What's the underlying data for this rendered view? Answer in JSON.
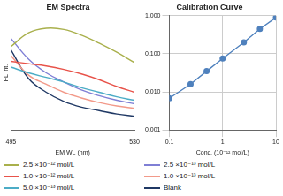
{
  "chart_data": [
    {
      "type": "line",
      "title": "EM Spectra",
      "x_label": "EM WL (nm)",
      "y_label": "FL int.",
      "x": [
        495,
        500,
        505,
        510,
        515,
        520,
        525,
        530
      ],
      "series": [
        {
          "name": "2.5 ×10⁻¹² mol/L",
          "color": "#a9b04c",
          "values": [
            73,
            85,
            89,
            88,
            83,
            76,
            68,
            59
          ]
        },
        {
          "name": "1.0 ×10⁻¹² mol/L",
          "color": "#e8534a",
          "values": [
            60,
            58,
            56,
            53,
            49,
            44,
            38,
            33
          ]
        },
        {
          "name": "5.0 ×10⁻¹³ mol/L",
          "color": "#4bacc6",
          "values": [
            55,
            50,
            46,
            42,
            37,
            33,
            29,
            26
          ]
        },
        {
          "name": "2.5 ×10⁻¹³ mol/L",
          "color": "#7f7fd5",
          "values": [
            80,
            62,
            50,
            42,
            35,
            30,
            26,
            23
          ]
        },
        {
          "name": "1.0 ×10⁻¹³ mol/L",
          "color": "#f29a8a",
          "values": [
            65,
            48,
            40,
            33,
            28,
            24,
            21,
            19
          ]
        },
        {
          "name": "Blank",
          "color": "#1f3864",
          "values": [
            70,
            45,
            33,
            25,
            20,
            17,
            14,
            12
          ]
        }
      ],
      "xlim": [
        495,
        530
      ],
      "xticks": [
        495,
        530
      ],
      "ylim": [
        0,
        100
      ],
      "tick_labels": "x",
      "grid": false,
      "legend": "bottom"
    },
    {
      "type": "line",
      "title": "Calibration Curve",
      "x_label": "Conc. (10⁻¹² mol/L)",
      "x": [
        0.1,
        0.25,
        0.5,
        1.0,
        2.5,
        5.0,
        10
      ],
      "values": [
        0.0068,
        0.016,
        0.035,
        0.075,
        0.2,
        0.45,
        0.9
      ],
      "color": "#4f81bd",
      "marker": "circle",
      "log": true,
      "grid": true,
      "xlim": [
        0.1,
        10
      ],
      "xticks": [
        0.1,
        1,
        10
      ],
      "ylim": [
        0.001,
        1
      ],
      "yticks": [
        0.001,
        {
          "value": 0.01,
          "label": "0.010"
        },
        {
          "value": 0.1,
          "label": "0.100"
        },
        {
          "value": 1,
          "label": "1.000"
        }
      ]
    }
  ]
}
